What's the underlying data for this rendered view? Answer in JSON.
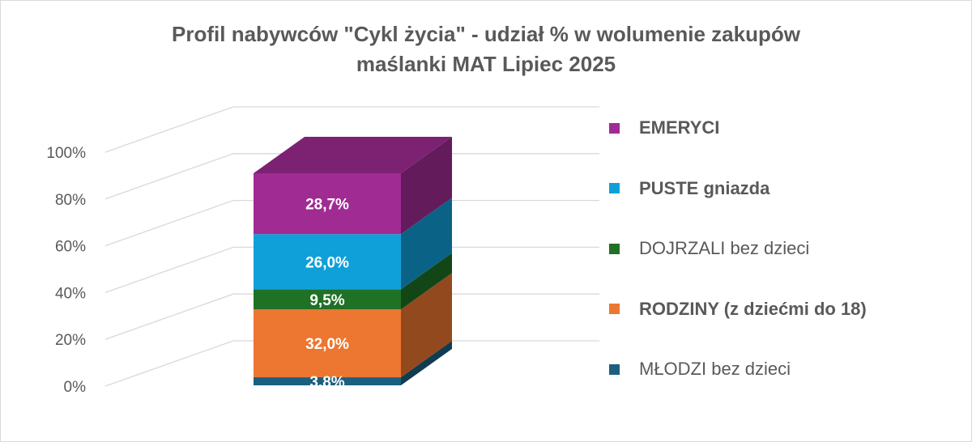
{
  "chart_data": {
    "type": "bar",
    "stacked": true,
    "three_d": true,
    "title": "Profil nabywców \"Cykl życia\" - udział % w wolumenie zakupów maślanki MAT Lipiec 2025",
    "title_lines": [
      "Profil nabywców \"Cykl życia\" - udział % w wolumenie zakupów",
      "maślanki MAT Lipiec 2025"
    ],
    "categories": [
      ""
    ],
    "ylim": [
      0,
      100
    ],
    "y_ticks": [
      "0%",
      "20%",
      "40%",
      "60%",
      "80%",
      "100%"
    ],
    "y_tick_values": [
      0,
      20,
      40,
      60,
      80,
      100
    ],
    "grid": true,
    "legend_position": "right",
    "series": [
      {
        "name": "MŁODZI bez dzieci",
        "values": [
          3.8
        ],
        "label": "3,8%",
        "color": "#1a6080",
        "bold": false
      },
      {
        "name": "RODZINY (z dziećmi do 18)",
        "values": [
          32.0
        ],
        "label": "32,0%",
        "color": "#ed7630",
        "bold": true
      },
      {
        "name": "DOJRZALI bez dzieci",
        "values": [
          9.5
        ],
        "label": "9,5%",
        "color": "#1f7125",
        "bold": false
      },
      {
        "name": "PUSTE gniazda",
        "values": [
          26.0
        ],
        "label": "26,0%",
        "color": "#10a0d9",
        "bold": true
      },
      {
        "name": "EMERYCI",
        "values": [
          28.7
        ],
        "label": "28,7%",
        "color": "#a02b93",
        "bold": true
      }
    ]
  }
}
